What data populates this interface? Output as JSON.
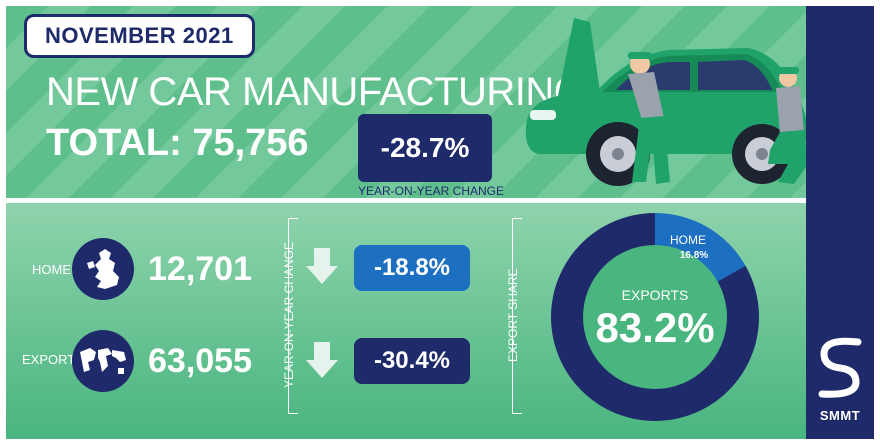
{
  "header": {
    "month": "NOVEMBER 2021",
    "title": "NEW CAR MANUFACTURING",
    "total_text": "TOTAL: 75,756",
    "yoy_change": "-28.7%",
    "yoy_caption": "YEAR-ON-YEAR CHANGE"
  },
  "breakdown": {
    "home_label": "HOME",
    "home_value": "12,701",
    "home_change": "-18.8%",
    "export_label": "EXPORT",
    "export_value": "63,055",
    "export_change": "-30.4%",
    "change_caption": "YEAR-ON-YEAR CHANGE"
  },
  "share": {
    "caption": "EXPORT SHARE",
    "center_label": "EXPORTS",
    "center_value": "83.2%",
    "home_label": "HOME",
    "home_value": "16.8%"
  },
  "brand": {
    "name": "SMMT"
  },
  "colors": {
    "navy": "#1f2a6b",
    "blue": "#1d6fc2",
    "green": "#49b57f",
    "light_green": "#8fd3ad"
  },
  "chart_data": {
    "type": "pie",
    "title": "",
    "categories": [
      "EXPORTS",
      "HOME"
    ],
    "values": [
      83.2,
      16.8
    ],
    "unit": "%",
    "donut": true,
    "colors": [
      "#1f2a6b",
      "#1d6fc2"
    ]
  }
}
